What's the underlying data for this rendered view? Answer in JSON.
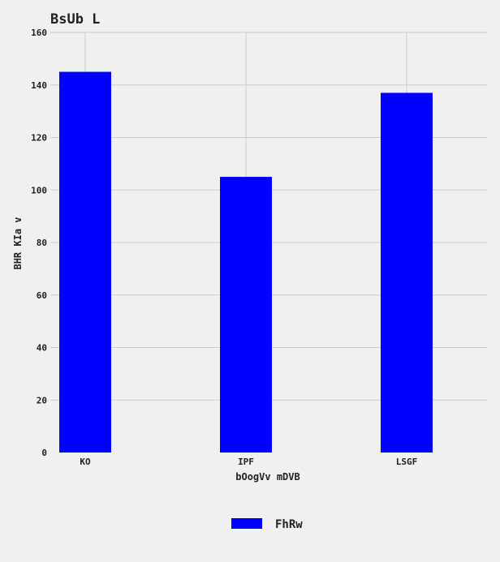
{
  "chart_data": {
    "type": "bar",
    "title": "BsUb L",
    "xlabel": "bOogVv mDVB",
    "ylabel": "BHR  KIa v",
    "categories": [
      "KO",
      "IPF",
      "LSGF"
    ],
    "series": [
      {
        "name": "FhRw",
        "values": [
          145,
          105,
          137
        ],
        "color": "#0000ff"
      }
    ],
    "ylim": [
      0,
      160
    ],
    "yticks": [
      0,
      20,
      40,
      60,
      80,
      100,
      120,
      140,
      160
    ],
    "grid": true,
    "legend_position": "bottom-center"
  },
  "colors": {
    "background": "#f0f0f0",
    "grid": "#cccccc",
    "bar": "#0000ff"
  }
}
